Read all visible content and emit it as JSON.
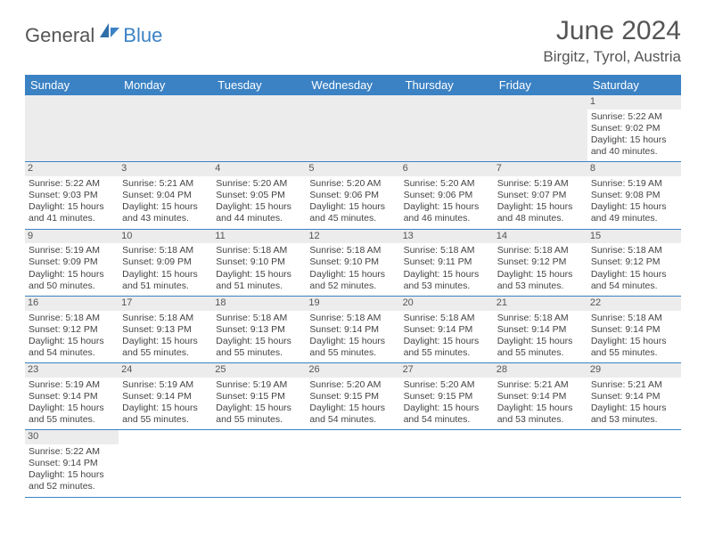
{
  "logo": {
    "main": "General",
    "accent": "Blue"
  },
  "title": "June 2024",
  "location": "Birgitz, Tyrol, Austria",
  "colors": {
    "header_bg": "#3b82c4",
    "header_text": "#ffffff",
    "daynum_bg": "#ececec",
    "border": "#3b82c4",
    "text": "#444444",
    "title_text": "#555555"
  },
  "day_headers": [
    "Sunday",
    "Monday",
    "Tuesday",
    "Wednesday",
    "Thursday",
    "Friday",
    "Saturday"
  ],
  "weeks": [
    [
      null,
      null,
      null,
      null,
      null,
      null,
      {
        "n": "1",
        "sr": "5:22 AM",
        "ss": "9:02 PM",
        "dl": "15 hours and 40 minutes."
      }
    ],
    [
      {
        "n": "2",
        "sr": "5:22 AM",
        "ss": "9:03 PM",
        "dl": "15 hours and 41 minutes."
      },
      {
        "n": "3",
        "sr": "5:21 AM",
        "ss": "9:04 PM",
        "dl": "15 hours and 43 minutes."
      },
      {
        "n": "4",
        "sr": "5:20 AM",
        "ss": "9:05 PM",
        "dl": "15 hours and 44 minutes."
      },
      {
        "n": "5",
        "sr": "5:20 AM",
        "ss": "9:06 PM",
        "dl": "15 hours and 45 minutes."
      },
      {
        "n": "6",
        "sr": "5:20 AM",
        "ss": "9:06 PM",
        "dl": "15 hours and 46 minutes."
      },
      {
        "n": "7",
        "sr": "5:19 AM",
        "ss": "9:07 PM",
        "dl": "15 hours and 48 minutes."
      },
      {
        "n": "8",
        "sr": "5:19 AM",
        "ss": "9:08 PM",
        "dl": "15 hours and 49 minutes."
      }
    ],
    [
      {
        "n": "9",
        "sr": "5:19 AM",
        "ss": "9:09 PM",
        "dl": "15 hours and 50 minutes."
      },
      {
        "n": "10",
        "sr": "5:18 AM",
        "ss": "9:09 PM",
        "dl": "15 hours and 51 minutes."
      },
      {
        "n": "11",
        "sr": "5:18 AM",
        "ss": "9:10 PM",
        "dl": "15 hours and 51 minutes."
      },
      {
        "n": "12",
        "sr": "5:18 AM",
        "ss": "9:10 PM",
        "dl": "15 hours and 52 minutes."
      },
      {
        "n": "13",
        "sr": "5:18 AM",
        "ss": "9:11 PM",
        "dl": "15 hours and 53 minutes."
      },
      {
        "n": "14",
        "sr": "5:18 AM",
        "ss": "9:12 PM",
        "dl": "15 hours and 53 minutes."
      },
      {
        "n": "15",
        "sr": "5:18 AM",
        "ss": "9:12 PM",
        "dl": "15 hours and 54 minutes."
      }
    ],
    [
      {
        "n": "16",
        "sr": "5:18 AM",
        "ss": "9:12 PM",
        "dl": "15 hours and 54 minutes."
      },
      {
        "n": "17",
        "sr": "5:18 AM",
        "ss": "9:13 PM",
        "dl": "15 hours and 55 minutes."
      },
      {
        "n": "18",
        "sr": "5:18 AM",
        "ss": "9:13 PM",
        "dl": "15 hours and 55 minutes."
      },
      {
        "n": "19",
        "sr": "5:18 AM",
        "ss": "9:14 PM",
        "dl": "15 hours and 55 minutes."
      },
      {
        "n": "20",
        "sr": "5:18 AM",
        "ss": "9:14 PM",
        "dl": "15 hours and 55 minutes."
      },
      {
        "n": "21",
        "sr": "5:18 AM",
        "ss": "9:14 PM",
        "dl": "15 hours and 55 minutes."
      },
      {
        "n": "22",
        "sr": "5:18 AM",
        "ss": "9:14 PM",
        "dl": "15 hours and 55 minutes."
      }
    ],
    [
      {
        "n": "23",
        "sr": "5:19 AM",
        "ss": "9:14 PM",
        "dl": "15 hours and 55 minutes."
      },
      {
        "n": "24",
        "sr": "5:19 AM",
        "ss": "9:14 PM",
        "dl": "15 hours and 55 minutes."
      },
      {
        "n": "25",
        "sr": "5:19 AM",
        "ss": "9:15 PM",
        "dl": "15 hours and 55 minutes."
      },
      {
        "n": "26",
        "sr": "5:20 AM",
        "ss": "9:15 PM",
        "dl": "15 hours and 54 minutes."
      },
      {
        "n": "27",
        "sr": "5:20 AM",
        "ss": "9:15 PM",
        "dl": "15 hours and 54 minutes."
      },
      {
        "n": "28",
        "sr": "5:21 AM",
        "ss": "9:14 PM",
        "dl": "15 hours and 53 minutes."
      },
      {
        "n": "29",
        "sr": "5:21 AM",
        "ss": "9:14 PM",
        "dl": "15 hours and 53 minutes."
      }
    ],
    [
      {
        "n": "30",
        "sr": "5:22 AM",
        "ss": "9:14 PM",
        "dl": "15 hours and 52 minutes."
      },
      null,
      null,
      null,
      null,
      null,
      null
    ]
  ],
  "labels": {
    "sunrise": "Sunrise:",
    "sunset": "Sunset:",
    "daylight": "Daylight:"
  }
}
